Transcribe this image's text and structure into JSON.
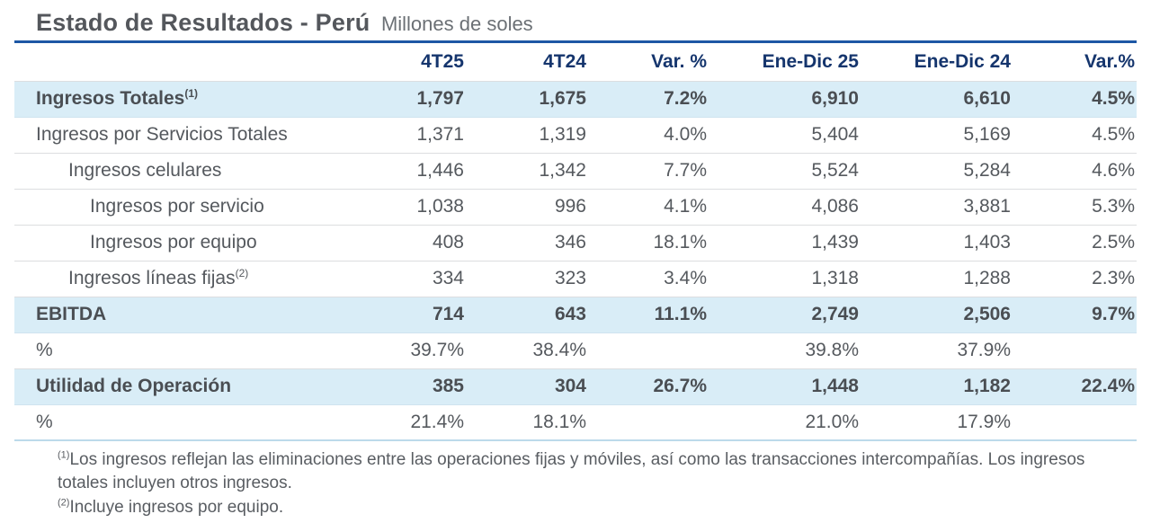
{
  "header": {
    "title": "Estado de Resultados - Perú",
    "subtitle": "Millones de soles"
  },
  "table": {
    "columns": [
      "",
      "4T25",
      "4T24",
      "Var. %",
      "Ene-Dic 25",
      "Ene-Dic 24",
      "Var.%"
    ],
    "rows": [
      {
        "label": "Ingresos Totales",
        "sup": "(1)",
        "indent": 0,
        "bold": true,
        "highlight": true,
        "values": [
          "1,797",
          "1,675",
          "7.2%",
          "6,910",
          "6,610",
          "4.5%"
        ]
      },
      {
        "label": "Ingresos por Servicios Totales",
        "sup": "",
        "indent": 0,
        "bold": false,
        "highlight": false,
        "values": [
          "1,371",
          "1,319",
          "4.0%",
          "5,404",
          "5,169",
          "4.5%"
        ]
      },
      {
        "label": "Ingresos celulares",
        "sup": "",
        "indent": 1,
        "bold": false,
        "highlight": false,
        "values": [
          "1,446",
          "1,342",
          "7.7%",
          "5,524",
          "5,284",
          "4.6%"
        ]
      },
      {
        "label": "Ingresos por servicio",
        "sup": "",
        "indent": 2,
        "bold": false,
        "highlight": false,
        "values": [
          "1,038",
          "996",
          "4.1%",
          "4,086",
          "3,881",
          "5.3%"
        ]
      },
      {
        "label": "Ingresos por equipo",
        "sup": "",
        "indent": 2,
        "bold": false,
        "highlight": false,
        "values": [
          "408",
          "346",
          "18.1%",
          "1,439",
          "1,403",
          "2.5%"
        ]
      },
      {
        "label": "Ingresos líneas fijas",
        "sup": "(2)",
        "indent": 1,
        "bold": false,
        "highlight": false,
        "values": [
          "334",
          "323",
          "3.4%",
          "1,318",
          "1,288",
          "2.3%"
        ]
      },
      {
        "label": "EBITDA",
        "sup": "",
        "indent": 0,
        "bold": true,
        "highlight": true,
        "values": [
          "714",
          "643",
          "11.1%",
          "2,749",
          "2,506",
          "9.7%"
        ]
      },
      {
        "label": "%",
        "sup": "",
        "indent": 0,
        "bold": false,
        "highlight": false,
        "values": [
          "39.7%",
          "38.4%",
          "",
          "39.8%",
          "37.9%",
          ""
        ]
      },
      {
        "label": "Utilidad de Operación",
        "sup": "",
        "indent": 0,
        "bold": true,
        "highlight": true,
        "values": [
          "385",
          "304",
          "26.7%",
          "1,448",
          "1,182",
          "22.4%"
        ]
      },
      {
        "label": "%",
        "sup": "",
        "indent": 0,
        "bold": false,
        "highlight": false,
        "values": [
          "21.4%",
          "18.1%",
          "",
          "21.0%",
          "17.9%",
          ""
        ]
      }
    ]
  },
  "footnotes": [
    {
      "sup": "(1)",
      "text": "Los ingresos reflejan las eliminaciones entre las operaciones fijas y móviles, así como las transacciones intercompañías. Los ingresos totales incluyen otros ingresos."
    },
    {
      "sup": "(2)",
      "text": "Incluye ingresos por equipo."
    }
  ],
  "colors": {
    "accent_rule": "#1d57a5",
    "header_text": "#15356d",
    "highlight_row_bg": "#d9edf7",
    "body_text": "#55595e",
    "title_text": "#54575c"
  }
}
